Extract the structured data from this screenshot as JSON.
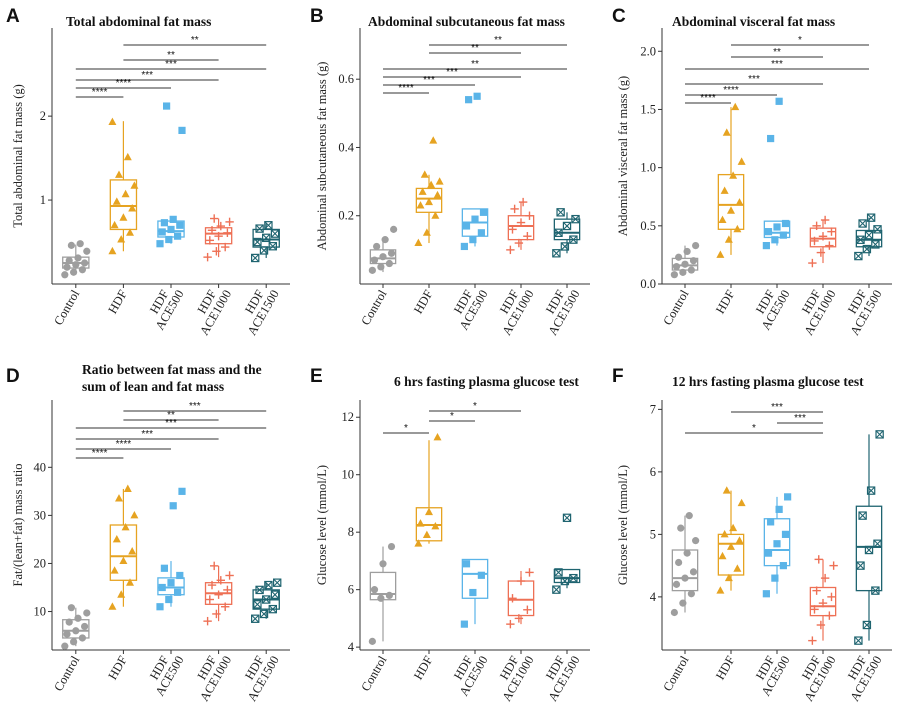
{
  "groups": [
    {
      "label": [
        "Control"
      ],
      "color": "#9e9e9e",
      "shape": "circle"
    },
    {
      "label": [
        "HDF"
      ],
      "color": "#e6a321",
      "shape": "triangle"
    },
    {
      "label": [
        "HDF",
        "ACE500"
      ],
      "color": "#5ab4e8",
      "shape": "square"
    },
    {
      "label": [
        "HDF",
        "ACE1000"
      ],
      "color": "#ee7055",
      "shape": "plus"
    },
    {
      "label": [
        "HDF",
        "ACE1500"
      ],
      "color": "#1f6470",
      "shape": "xsquare"
    }
  ],
  "chart_data": [
    {
      "letter": "A",
      "type": "box",
      "title": [
        "Total abdominal fat mass"
      ],
      "ylabel": "Total abdominal fat mass (g)",
      "ylim": [
        0,
        3.05
      ],
      "yticks": [
        1,
        2
      ],
      "boxes": [
        {
          "q1": 0.19,
          "median": 0.25,
          "q3": 0.32,
          "wlo": 0.11,
          "whi": 0.47,
          "points": [
            0.11,
            0.14,
            0.17,
            0.2,
            0.23,
            0.25,
            0.28,
            0.31,
            0.39,
            0.46,
            0.48
          ]
        },
        {
          "q1": 0.65,
          "median": 0.93,
          "q3": 1.24,
          "wlo": 0.39,
          "whi": 1.94,
          "points": [
            0.39,
            0.53,
            0.61,
            0.7,
            0.79,
            0.9,
            0.98,
            1.07,
            1.17,
            1.3,
            1.51,
            1.93
          ]
        },
        {
          "q1": 0.56,
          "median": 0.63,
          "q3": 0.75,
          "wlo": 0.48,
          "whi": 0.8,
          "points": [
            0.48,
            0.53,
            0.57,
            0.62,
            0.65,
            0.7,
            0.73,
            0.77,
            1.83,
            2.12
          ]
        },
        {
          "q1": 0.48,
          "median": 0.6,
          "q3": 0.67,
          "wlo": 0.32,
          "whi": 0.78,
          "points": [
            0.32,
            0.39,
            0.44,
            0.52,
            0.57,
            0.61,
            0.64,
            0.69,
            0.74,
            0.78
          ]
        },
        {
          "q1": 0.44,
          "median": 0.53,
          "q3": 0.65,
          "wlo": 0.31,
          "whi": 0.72,
          "points": [
            0.31,
            0.4,
            0.45,
            0.5,
            0.55,
            0.6,
            0.66,
            0.7
          ]
        }
      ],
      "brackets": [
        {
          "a": 2,
          "b": 5,
          "label": "**"
        },
        {
          "a": 2,
          "b": 4,
          "label": "**"
        },
        {
          "a": 1,
          "b": 5,
          "label": "***"
        },
        {
          "a": 1,
          "b": 4,
          "label": "***"
        },
        {
          "a": 1,
          "b": 3,
          "label": "****"
        },
        {
          "a": 1,
          "b": 2,
          "label": "****"
        }
      ]
    },
    {
      "letter": "B",
      "type": "box",
      "title": [
        "Abdominal subcutaneous fat mass"
      ],
      "ylabel": "Abdominal subcutaneous fat mass (g)",
      "ylim": [
        0,
        0.75
      ],
      "yticks": [
        0.2,
        0.4,
        0.6
      ],
      "boxes": [
        {
          "q1": 0.06,
          "median": 0.075,
          "q3": 0.1,
          "wlo": 0.035,
          "whi": 0.13,
          "points": [
            0.04,
            0.05,
            0.06,
            0.07,
            0.08,
            0.09,
            0.11,
            0.13,
            0.16
          ]
        },
        {
          "q1": 0.21,
          "median": 0.25,
          "q3": 0.28,
          "wlo": 0.12,
          "whi": 0.32,
          "points": [
            0.12,
            0.15,
            0.2,
            0.23,
            0.24,
            0.26,
            0.27,
            0.29,
            0.3,
            0.32,
            0.42
          ]
        },
        {
          "q1": 0.14,
          "median": 0.18,
          "q3": 0.22,
          "wlo": 0.11,
          "whi": 0.22,
          "points": [
            0.11,
            0.13,
            0.15,
            0.17,
            0.19,
            0.21,
            0.54,
            0.55
          ]
        },
        {
          "q1": 0.13,
          "median": 0.17,
          "q3": 0.2,
          "wlo": 0.1,
          "whi": 0.24,
          "points": [
            0.1,
            0.12,
            0.14,
            0.16,
            0.18,
            0.2,
            0.22,
            0.24
          ]
        },
        {
          "q1": 0.13,
          "median": 0.15,
          "q3": 0.19,
          "wlo": 0.09,
          "whi": 0.21,
          "points": [
            0.09,
            0.11,
            0.13,
            0.15,
            0.17,
            0.19,
            0.21
          ]
        }
      ],
      "brackets": [
        {
          "a": 2,
          "b": 5,
          "label": "**"
        },
        {
          "a": 2,
          "b": 4,
          "label": "**"
        },
        {
          "a": 1,
          "b": 5,
          "label": "**"
        },
        {
          "a": 1,
          "b": 4,
          "label": "***"
        },
        {
          "a": 1,
          "b": 3,
          "label": "***"
        },
        {
          "a": 1,
          "b": 2,
          "label": "****"
        }
      ]
    },
    {
      "letter": "C",
      "type": "box",
      "title": [
        "Abdominal visceral fat mass"
      ],
      "ylabel": "Abdominal visceral fat mass (g)",
      "ylim": [
        0,
        2.2
      ],
      "yticks": [
        0.0,
        0.5,
        1.0,
        1.5,
        2.0
      ],
      "boxes": [
        {
          "q1": 0.12,
          "median": 0.16,
          "q3": 0.22,
          "wlo": 0.08,
          "whi": 0.33,
          "points": [
            0.08,
            0.1,
            0.12,
            0.15,
            0.17,
            0.2,
            0.23,
            0.28,
            0.33
          ]
        },
        {
          "q1": 0.47,
          "median": 0.68,
          "q3": 0.94,
          "wlo": 0.25,
          "whi": 1.52,
          "points": [
            0.25,
            0.38,
            0.47,
            0.55,
            0.63,
            0.7,
            0.8,
            0.93,
            1.05,
            1.3,
            1.52
          ]
        },
        {
          "q1": 0.4,
          "median": 0.44,
          "q3": 0.54,
          "wlo": 0.33,
          "whi": 0.54,
          "points": [
            0.33,
            0.38,
            0.42,
            0.45,
            0.49,
            0.52,
            1.25,
            1.57
          ]
        },
        {
          "q1": 0.32,
          "median": 0.39,
          "q3": 0.48,
          "wlo": 0.18,
          "whi": 0.55,
          "points": [
            0.18,
            0.27,
            0.33,
            0.37,
            0.41,
            0.45,
            0.5,
            0.55
          ]
        },
        {
          "q1": 0.32,
          "median": 0.38,
          "q3": 0.46,
          "wlo": 0.24,
          "whi": 0.57,
          "points": [
            0.24,
            0.3,
            0.34,
            0.38,
            0.42,
            0.47,
            0.52,
            0.57
          ]
        }
      ],
      "brackets": [
        {
          "a": 2,
          "b": 5,
          "label": "*"
        },
        {
          "a": 2,
          "b": 4,
          "label": "**"
        },
        {
          "a": 1,
          "b": 5,
          "label": "***"
        },
        {
          "a": 1,
          "b": 4,
          "label": "***"
        },
        {
          "a": 1,
          "b": 3,
          "label": "****"
        },
        {
          "a": 1,
          "b": 2,
          "label": "****"
        }
      ]
    },
    {
      "letter": "D",
      "type": "box",
      "title": [
        "Ratio between fat mass and the",
        "sum of lean and fat mass"
      ],
      "ylabel": "Fat/(lean+fat) mass ratio",
      "ylim": [
        2,
        54
      ],
      "yticks": [
        10,
        20,
        30,
        40
      ],
      "boxes": [
        {
          "q1": 4.5,
          "median": 6.0,
          "q3": 8.3,
          "wlo": 2.8,
          "whi": 10.8,
          "points": [
            2.8,
            3.7,
            4.5,
            5.3,
            6.0,
            6.9,
            7.8,
            8.6,
            9.7,
            10.8
          ]
        },
        {
          "q1": 16.5,
          "median": 21.5,
          "q3": 28.0,
          "wlo": 11.0,
          "whi": 35.5,
          "points": [
            11.0,
            13.5,
            16.0,
            18.5,
            20.5,
            22.5,
            25.0,
            27.5,
            30.0,
            33.5,
            35.5
          ]
        },
        {
          "q1": 13.5,
          "median": 15.0,
          "q3": 17.0,
          "wlo": 11.0,
          "whi": 20.5,
          "points": [
            11.0,
            12.5,
            14.0,
            15.0,
            16.0,
            17.5,
            19.0,
            32.0,
            35.0
          ]
        },
        {
          "q1": 11.5,
          "median": 13.8,
          "q3": 16.0,
          "wlo": 8.0,
          "whi": 19.5,
          "points": [
            8.0,
            9.5,
            11.0,
            12.5,
            13.5,
            14.5,
            15.5,
            16.5,
            17.5,
            19.5
          ]
        },
        {
          "q1": 10.5,
          "median": 12.5,
          "q3": 14.5,
          "wlo": 8.5,
          "whi": 16.0,
          "points": [
            8.5,
            9.5,
            10.5,
            11.5,
            12.5,
            13.5,
            14.5,
            15.5,
            16.0
          ]
        }
      ],
      "brackets": [
        {
          "a": 2,
          "b": 5,
          "label": "***"
        },
        {
          "a": 2,
          "b": 4,
          "label": "**"
        },
        {
          "a": 1,
          "b": 5,
          "label": "***"
        },
        {
          "a": 1,
          "b": 4,
          "label": "***"
        },
        {
          "a": 1,
          "b": 3,
          "label": "****"
        },
        {
          "a": 1,
          "b": 2,
          "label": "****"
        }
      ]
    },
    {
      "letter": "E",
      "type": "box",
      "title": [
        "6 hrs fasting plasma glucose test"
      ],
      "ylabel": "Glucose level (mmol/L)",
      "ylim": [
        3.9,
        12.6
      ],
      "yticks": [
        4,
        6,
        8,
        10,
        12
      ],
      "boxes": [
        {
          "q1": 5.65,
          "median": 5.85,
          "q3": 6.6,
          "wlo": 4.2,
          "whi": 7.5,
          "points": [
            4.2,
            5.7,
            5.8,
            6.0,
            6.9,
            7.5
          ]
        },
        {
          "q1": 7.7,
          "median": 8.25,
          "q3": 8.85,
          "wlo": 7.6,
          "whi": 11.2,
          "points": [
            7.6,
            7.9,
            8.2,
            8.3,
            8.7,
            11.3
          ]
        },
        {
          "q1": 5.7,
          "median": 6.55,
          "q3": 7.05,
          "wlo": 4.8,
          "whi": 7.05,
          "points": [
            4.8,
            5.9,
            6.5,
            6.9
          ]
        },
        {
          "q1": 5.1,
          "median": 5.65,
          "q3": 6.3,
          "wlo": 4.8,
          "whi": 6.65,
          "points": [
            4.8,
            5.0,
            5.3,
            5.7,
            6.3,
            6.6
          ]
        },
        {
          "q1": 6.25,
          "median": 6.4,
          "q3": 6.7,
          "wlo": 6.05,
          "whi": 6.7,
          "points": [
            6.0,
            6.3,
            6.4,
            6.6,
            8.5
          ]
        }
      ],
      "brackets": [
        {
          "a": 2,
          "b": 4,
          "label": "*"
        },
        {
          "a": 2,
          "b": 3,
          "label": "*"
        },
        {
          "a": 1,
          "b": 2,
          "label": "*"
        }
      ]
    },
    {
      "letter": "F",
      "type": "box",
      "title": [
        "12 hrs fasting plasma glucose test"
      ],
      "ylabel": "Glucose level (mmol/L)",
      "ylim": [
        3.15,
        7.15
      ],
      "yticks": [
        4,
        5,
        6,
        7
      ],
      "boxes": [
        {
          "q1": 4.1,
          "median": 4.3,
          "q3": 4.75,
          "wlo": 3.75,
          "whi": 5.3,
          "points": [
            3.75,
            3.9,
            4.05,
            4.2,
            4.3,
            4.4,
            4.55,
            4.7,
            4.9,
            5.1,
            5.3
          ]
        },
        {
          "q1": 4.35,
          "median": 4.85,
          "q3": 5.0,
          "wlo": 4.1,
          "whi": 5.7,
          "points": [
            4.1,
            4.3,
            4.45,
            4.65,
            4.8,
            4.9,
            5.0,
            5.1,
            5.5,
            5.7
          ]
        },
        {
          "q1": 4.5,
          "median": 4.75,
          "q3": 5.25,
          "wlo": 4.05,
          "whi": 5.6,
          "points": [
            4.05,
            4.3,
            4.5,
            4.7,
            4.85,
            5.0,
            5.2,
            5.4,
            5.6
          ]
        },
        {
          "q1": 3.7,
          "median": 3.85,
          "q3": 4.15,
          "wlo": 3.3,
          "whi": 4.6,
          "points": [
            3.3,
            3.55,
            3.7,
            3.8,
            3.9,
            4.0,
            4.1,
            4.3,
            4.5,
            4.6
          ]
        },
        {
          "q1": 4.1,
          "median": 4.8,
          "q3": 5.45,
          "wlo": 3.3,
          "whi": 6.6,
          "points": [
            3.3,
            3.55,
            4.1,
            4.5,
            4.75,
            4.85,
            5.3,
            5.7,
            6.6
          ]
        }
      ],
      "brackets": [
        {
          "a": 2,
          "b": 4,
          "label": "***"
        },
        {
          "a": 3,
          "b": 4,
          "label": "***"
        },
        {
          "a": 1,
          "b": 4,
          "label": "*"
        }
      ]
    }
  ]
}
